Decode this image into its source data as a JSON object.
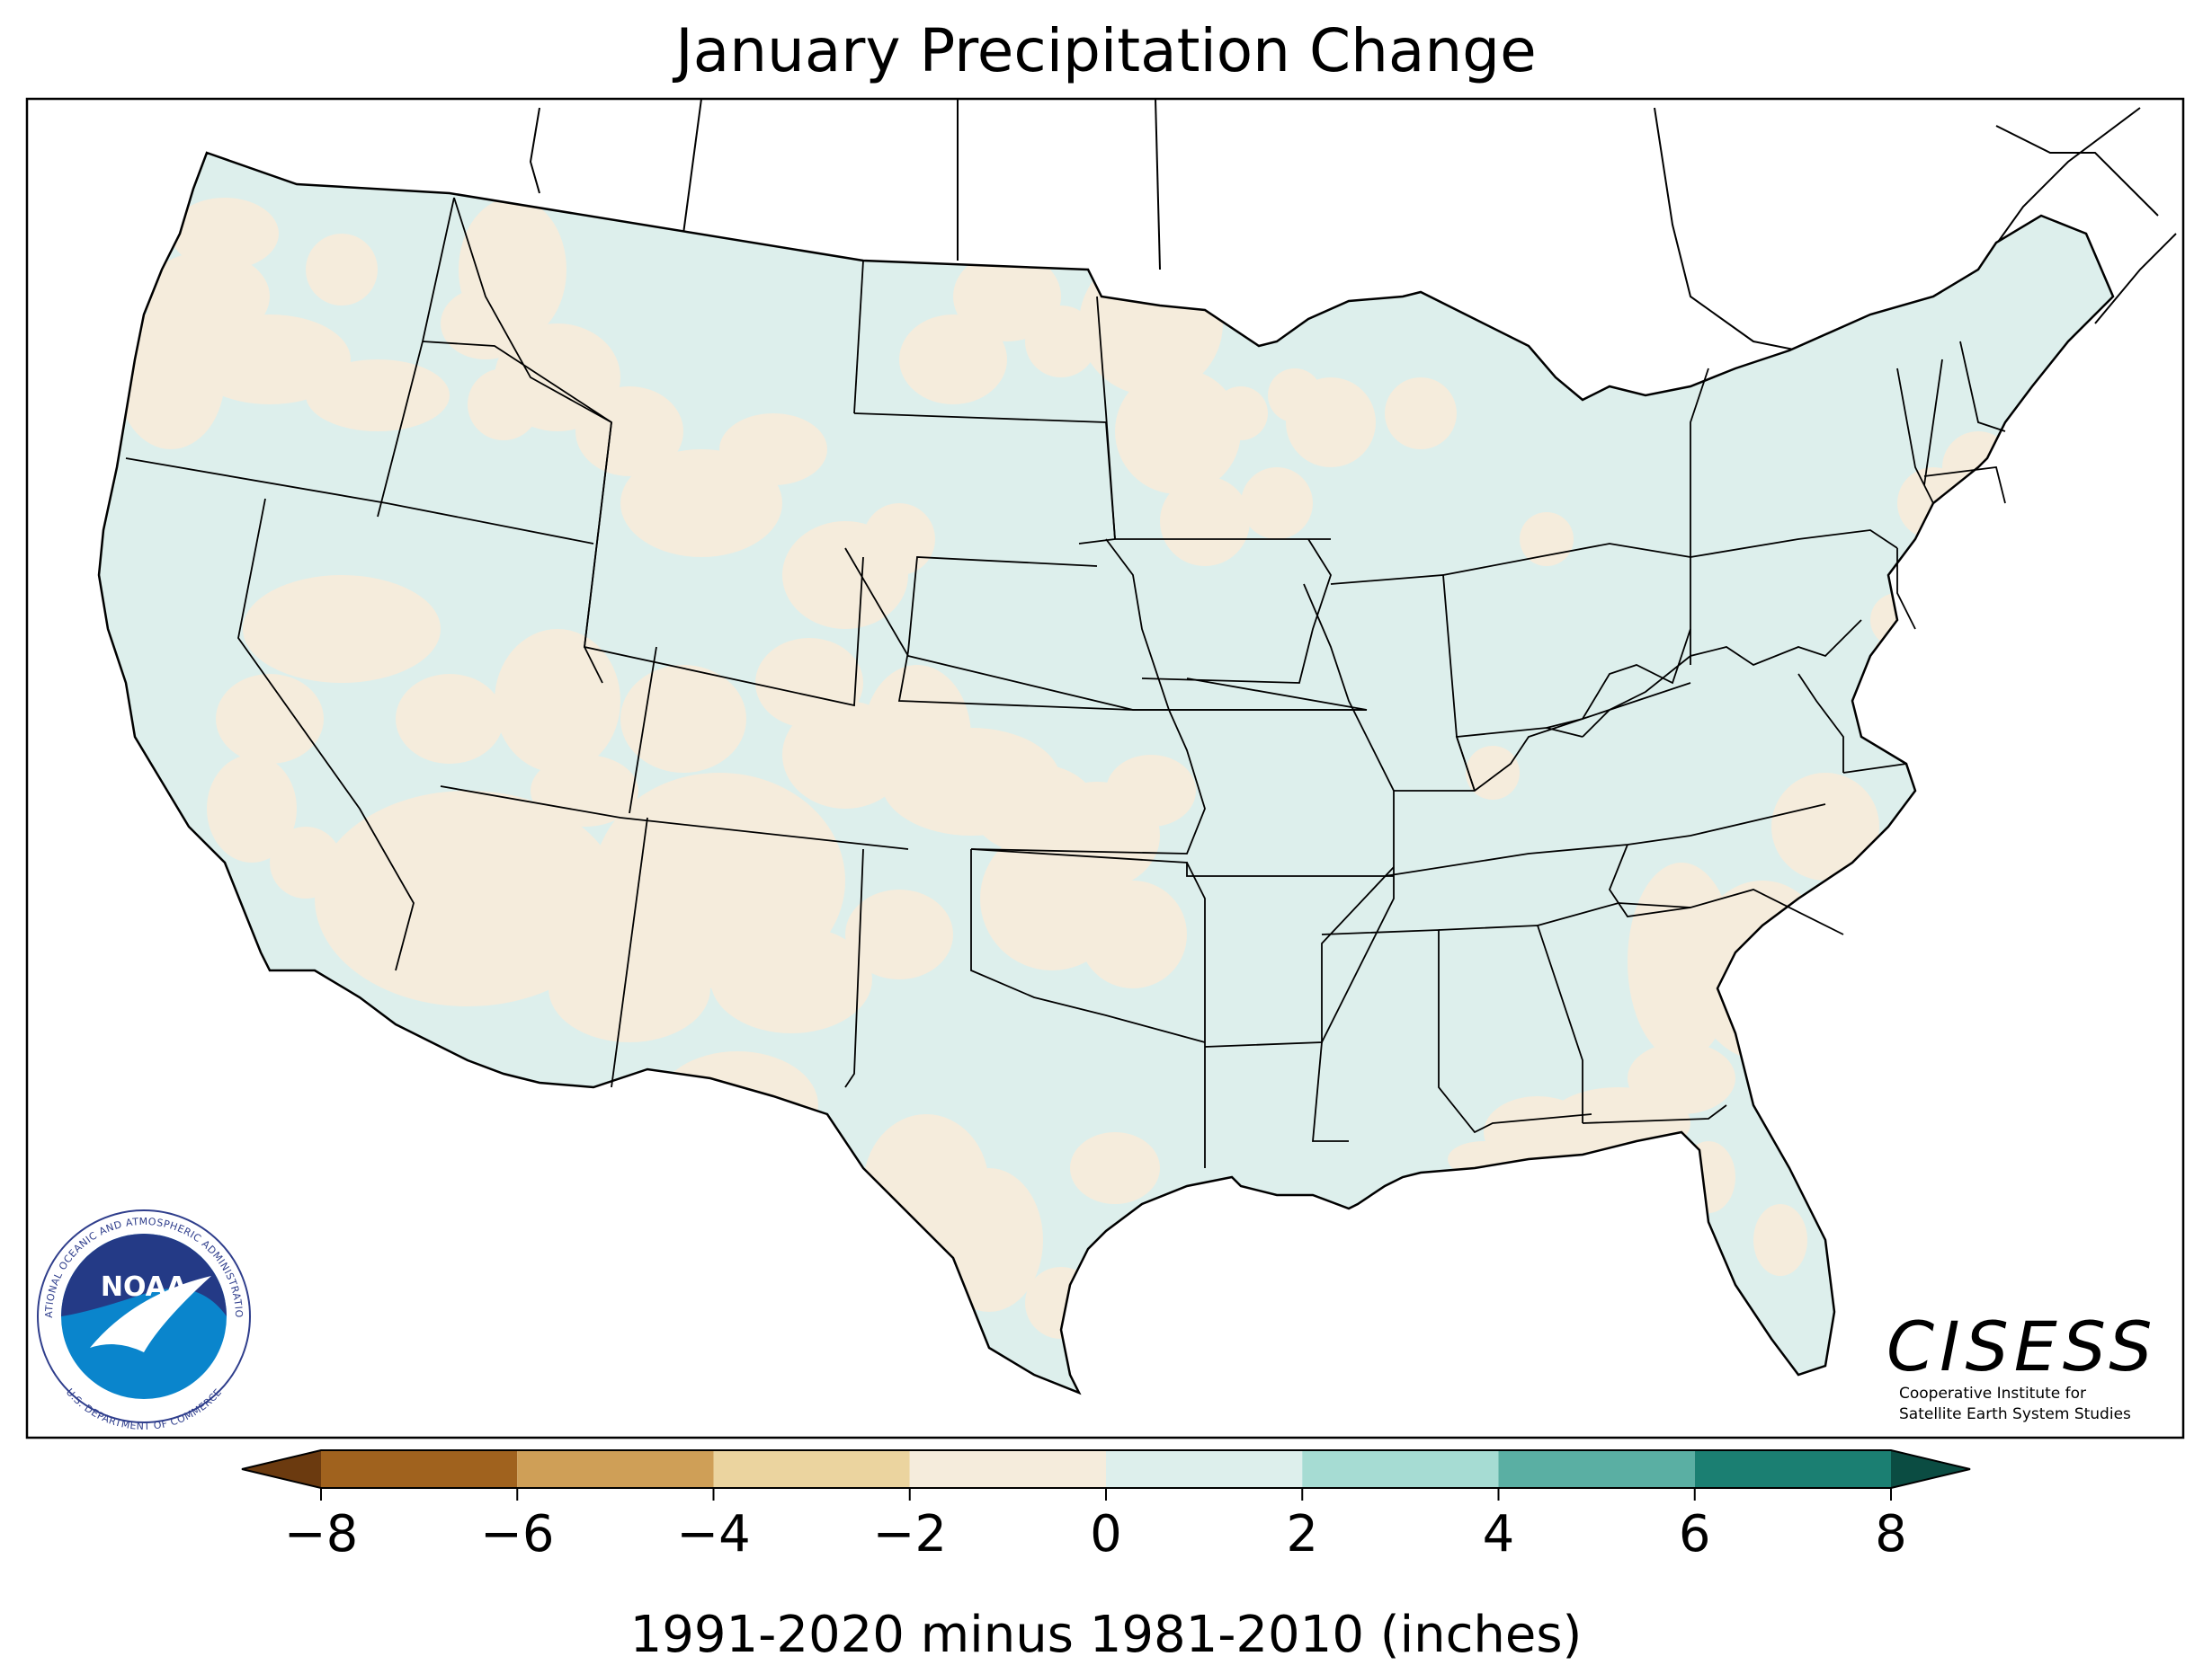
{
  "title": "January Precipitation Change",
  "colorbar": {
    "ticks": [
      "−8",
      "−6",
      "−4",
      "−2",
      "0",
      "2",
      "4",
      "6",
      "8"
    ],
    "label": "1991-2020 minus 1981-2010 (inches)",
    "bins": [
      {
        "range": "-8 to -6",
        "color": "#a0621e"
      },
      {
        "range": "-6 to -4",
        "color": "#cf9f57"
      },
      {
        "range": "-4 to -2",
        "color": "#ebd49f"
      },
      {
        "range": "-2 to 0",
        "color": "#f5ecdc"
      },
      {
        "range": "0 to 2",
        "color": "#ddefec"
      },
      {
        "range": "2 to 4",
        "color": "#a6dcd3"
      },
      {
        "range": "4 to 6",
        "color": "#5aafa3"
      },
      {
        "range": "6 to 8",
        "color": "#1b7f72"
      }
    ],
    "extend_low_color": "#6b3a0f",
    "extend_high_color": "#0b4c42"
  },
  "logos": {
    "noaa": {
      "center_text": "NOAA",
      "ring_text_top": "NATIONAL OCEANIC AND ATMOSPHERIC ADMINISTRATION",
      "ring_text_bottom": "U.S. DEPARTMENT OF COMMERCE"
    },
    "cisess": {
      "name": "CISESS",
      "line1": "Cooperative Institute for",
      "line2": "Satellite Earth System Studies"
    }
  },
  "map_colors": {
    "increase_0_2": "#ddefec",
    "decrease_0_2": "#f5ecdc",
    "border": "#000000"
  }
}
